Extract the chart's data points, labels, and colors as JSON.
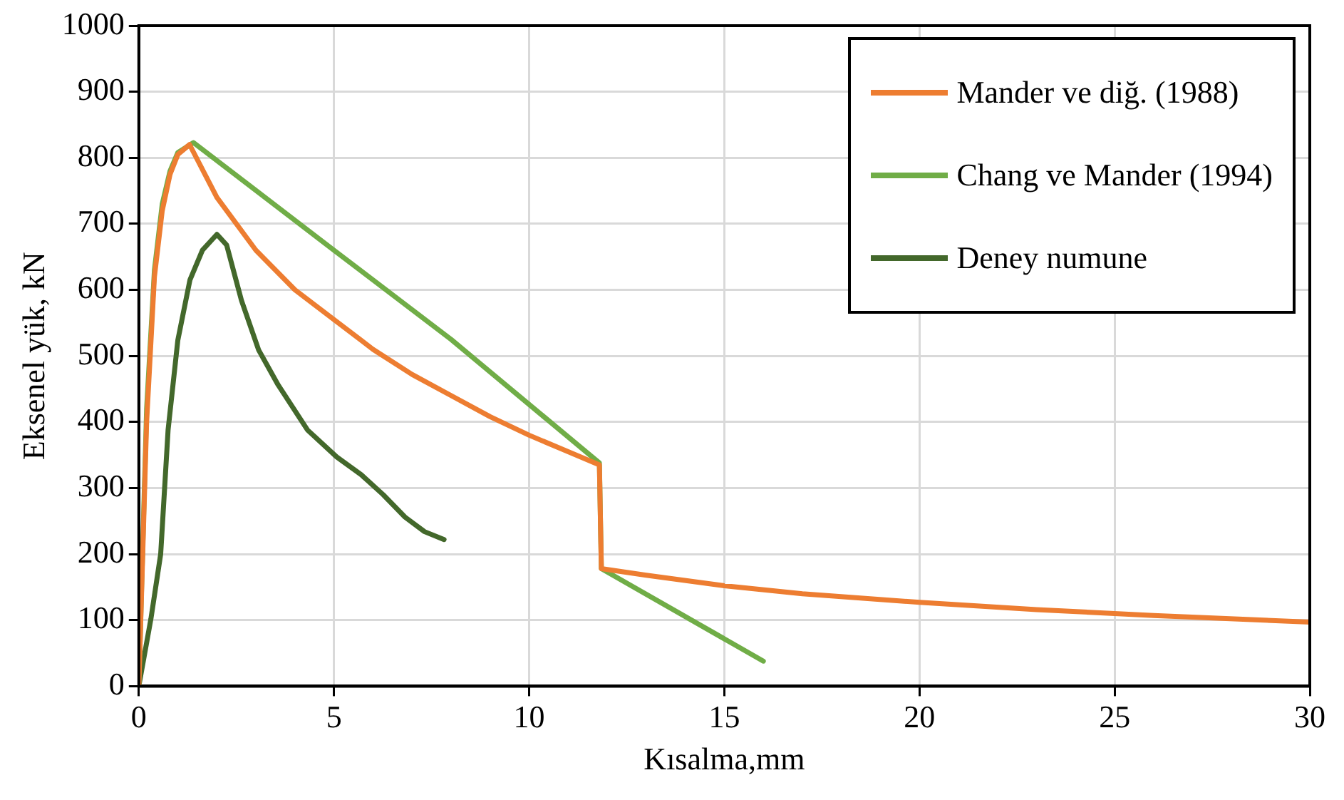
{
  "chart_data": {
    "type": "line",
    "xlabel": "Kısalma,mm",
    "ylabel": "Eksenel yük, kN",
    "xlim": [
      0,
      30
    ],
    "xticks": [
      0,
      5,
      10,
      15,
      20,
      25,
      30
    ],
    "ylim": [
      0,
      1000
    ],
    "yticks": [
      0,
      100,
      200,
      300,
      400,
      500,
      600,
      700,
      800,
      900,
      1000
    ],
    "grid": true,
    "legend": "top right",
    "marker": "none",
    "line_style": "solid",
    "series": [
      {
        "name": "Mander ve diğ. (1988)",
        "color": "#ed7d31",
        "x": [
          0,
          0.2,
          0.4,
          0.6,
          0.8,
          1.0,
          1.3,
          2,
          3,
          4,
          5,
          6,
          7,
          8,
          9,
          10,
          11,
          11.8,
          11.85,
          13,
          15,
          17,
          20,
          23,
          26,
          30
        ],
        "values": [
          0,
          400,
          620,
          720,
          775,
          805,
          820,
          740,
          660,
          600,
          555,
          510,
          472,
          440,
          408,
          380,
          355,
          335,
          178,
          168,
          152,
          140,
          127,
          116,
          107,
          97
        ]
      },
      {
        "name": "Chang ve Mander (1994)",
        "color": "#70ad47",
        "x": [
          0,
          0.2,
          0.4,
          0.6,
          0.8,
          1.0,
          1.4,
          5,
          8,
          11.8,
          11.85,
          16
        ],
        "values": [
          0,
          420,
          630,
          730,
          780,
          808,
          823,
          660,
          525,
          338,
          178,
          38
        ]
      },
      {
        "name": "Deney numune",
        "color": "#43682b",
        "x": [
          0,
          0.31,
          0.56,
          0.75,
          1.0,
          1.31,
          1.63,
          2.0,
          2.25,
          2.63,
          3.07,
          3.57,
          4.32,
          5.07,
          5.7,
          6.26,
          6.82,
          7.32,
          7.82
        ],
        "values": [
          0,
          102,
          200,
          388,
          524,
          615,
          660,
          684,
          668,
          584,
          509,
          456,
          388,
          347,
          320,
          290,
          256,
          234,
          222
        ]
      }
    ]
  }
}
